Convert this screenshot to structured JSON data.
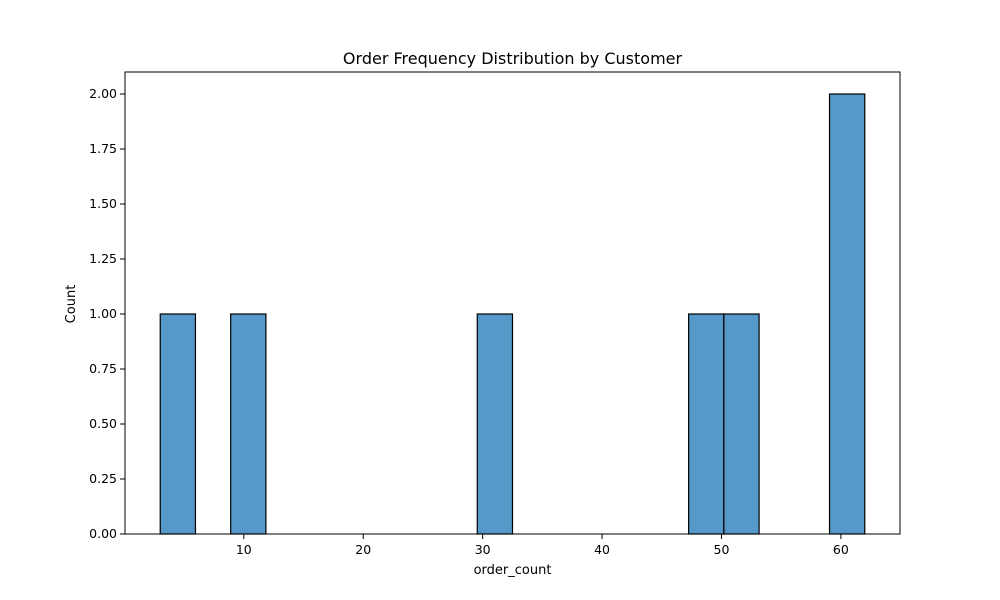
{
  "chart_data": {
    "type": "bar",
    "title": "Order Frequency Distribution by Customer",
    "xlabel": "order_count",
    "ylabel": "Count",
    "bins": [
      {
        "x_start": 3.0,
        "x_end": 5.95,
        "count": 1
      },
      {
        "x_start": 8.9,
        "x_end": 11.85,
        "count": 1
      },
      {
        "x_start": 29.55,
        "x_end": 32.5,
        "count": 1
      },
      {
        "x_start": 47.25,
        "x_end": 50.2,
        "count": 1
      },
      {
        "x_start": 50.2,
        "x_end": 53.15,
        "count": 1
      },
      {
        "x_start": 59.05,
        "x_end": 62.0,
        "count": 2
      }
    ],
    "xlim": [
      0.05,
      64.95
    ],
    "ylim": [
      0,
      2.1
    ],
    "x_ticks": [
      10,
      20,
      30,
      40,
      50,
      60
    ],
    "y_ticks": [
      0,
      0.25,
      0.5,
      0.75,
      1.0,
      1.25,
      1.5,
      1.75,
      2.0
    ],
    "x_tick_labels": [
      "10",
      "20",
      "30",
      "40",
      "50",
      "60"
    ],
    "y_tick_labels": [
      "0.00",
      "0.25",
      "0.50",
      "0.75",
      "1.00",
      "1.25",
      "1.50",
      "1.75",
      "2.00"
    ],
    "bar_color": "#5499c7",
    "edge_color": "#000000",
    "grid": false,
    "legend": false
  }
}
